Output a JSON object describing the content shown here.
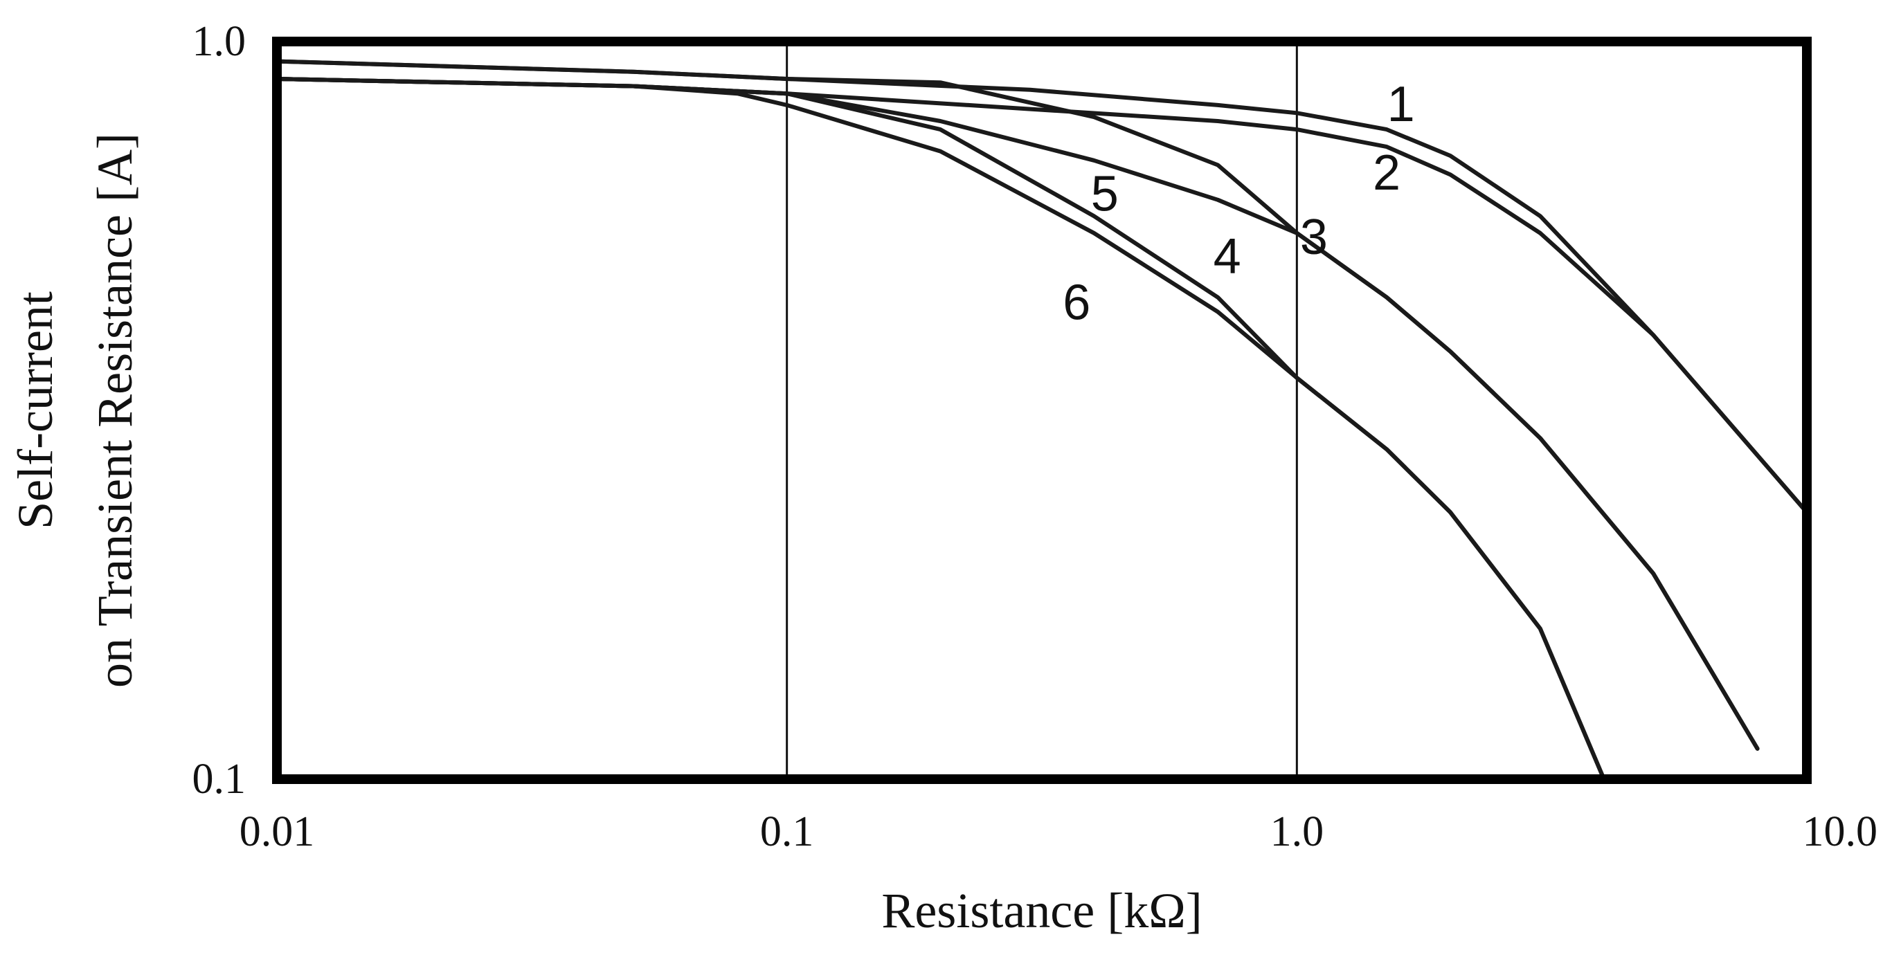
{
  "chart_data": {
    "type": "line",
    "xscale": "log",
    "yscale": "log",
    "xlim": [
      0.01,
      10.0
    ],
    "ylim": [
      0.1,
      1.0
    ],
    "xlabel": "Resistance [kΩ]",
    "ylabel_lines": [
      "Self-current",
      "on Transient Resistance [A]"
    ],
    "x_ticks": [
      {
        "value": 0.01,
        "label": "0.01"
      },
      {
        "value": 0.1,
        "label": "0.1"
      },
      {
        "value": 1.0,
        "label": "1.0"
      },
      {
        "value": 10.0,
        "label": "10.0"
      }
    ],
    "y_ticks": [
      {
        "value": 1.0,
        "label": "1.0"
      },
      {
        "value": 0.1,
        "label": "0.1"
      }
    ],
    "vertical_gridlines_at": [
      0.1,
      1.0
    ],
    "series": [
      {
        "name": "1",
        "label_at": [
          1.6,
          0.78
        ],
        "x": [
          0.01,
          0.05,
          0.1,
          0.3,
          0.7,
          1.0,
          1.5,
          2.0,
          3.0,
          5.0,
          10.0
        ],
        "y": [
          0.94,
          0.91,
          0.89,
          0.86,
          0.82,
          0.8,
          0.76,
          0.7,
          0.58,
          0.4,
          0.23
        ]
      },
      {
        "name": "2",
        "label_at": [
          1.5,
          0.63
        ],
        "x": [
          0.01,
          0.05,
          0.1,
          0.3,
          0.7,
          1.0,
          1.5,
          2.0,
          3.0,
          5.0,
          10.0
        ],
        "y": [
          0.89,
          0.87,
          0.85,
          0.81,
          0.78,
          0.76,
          0.72,
          0.66,
          0.55,
          0.4,
          0.23
        ]
      },
      {
        "name": "3",
        "label_at": [
          1.08,
          0.515
        ],
        "x": [
          0.01,
          0.05,
          0.1,
          0.2,
          0.4,
          0.7,
          1.0,
          1.5,
          2.0,
          3.0,
          5.0,
          8.0
        ],
        "y": [
          0.94,
          0.91,
          0.89,
          0.88,
          0.79,
          0.68,
          0.55,
          0.45,
          0.38,
          0.29,
          0.19,
          0.11
        ]
      },
      {
        "name": "4",
        "label_at": [
          0.73,
          0.485
        ],
        "x": [
          0.01,
          0.05,
          0.1,
          0.2,
          0.4,
          0.7,
          1.0,
          1.5,
          2.0,
          3.0,
          5.0,
          8.0
        ],
        "y": [
          0.89,
          0.87,
          0.85,
          0.78,
          0.69,
          0.61,
          0.55,
          0.45,
          0.38,
          0.29,
          0.19,
          0.11
        ]
      },
      {
        "name": "5",
        "label_at": [
          0.42,
          0.59
        ],
        "x": [
          0.01,
          0.05,
          0.1,
          0.2,
          0.4,
          0.7,
          1.0,
          1.5,
          2.0,
          3.0,
          4.0
        ],
        "y": [
          0.89,
          0.87,
          0.85,
          0.76,
          0.58,
          0.45,
          0.35,
          0.28,
          0.23,
          0.16,
          0.1
        ]
      },
      {
        "name": "6",
        "label_at": [
          0.37,
          0.42
        ],
        "x": [
          0.01,
          0.05,
          0.08,
          0.1,
          0.2,
          0.4,
          0.7,
          1.0,
          1.5,
          2.0,
          3.0,
          4.0
        ],
        "y": [
          0.89,
          0.87,
          0.85,
          0.82,
          0.71,
          0.55,
          0.43,
          0.35,
          0.28,
          0.23,
          0.16,
          0.1
        ]
      }
    ]
  }
}
